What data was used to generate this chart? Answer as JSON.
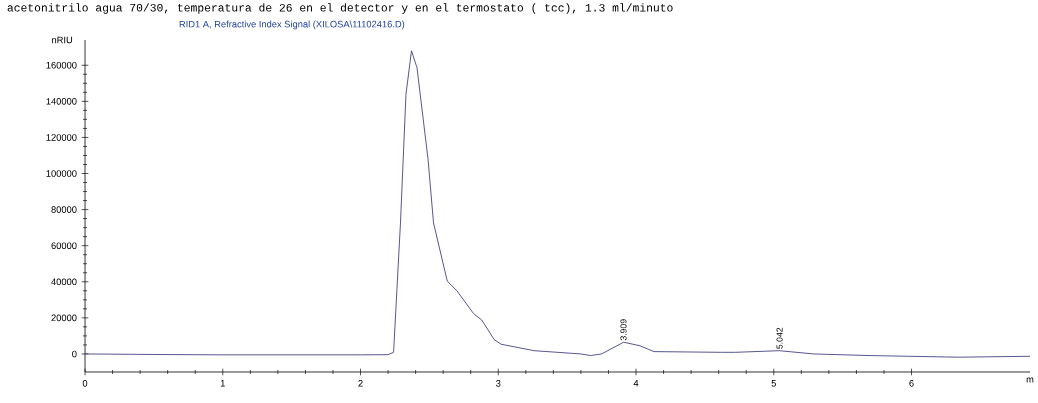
{
  "chart_data": {
    "type": "line",
    "title": "acetonitrilo agua 70/30, temperatura de 26 en el detector y en el termostato ( tcc), 1.3 ml/minuto",
    "subtitle": "RID1 A, Refractive Index Signal (XILOSA\\11102416.D)",
    "xlabel": "m",
    "ylabel": "nRIU",
    "x": [
      0,
      0.5,
      1,
      1.5,
      2,
      2.2,
      2.24,
      2.29,
      2.33,
      2.37,
      2.41,
      2.49,
      2.53,
      2.63,
      2.7,
      2.82,
      2.88,
      2.97,
      3.02,
      3.26,
      3.6,
      3.67,
      3.75,
      3.91,
      4.03,
      4.13,
      4.62,
      4.72,
      5.04,
      5.29,
      5.7,
      6.34,
      6.86
    ],
    "values": [
      0,
      -300,
      -500,
      -500,
      -500,
      -400,
      900,
      72600,
      144000,
      168000,
      158600,
      108000,
      72600,
      40300,
      35000,
      22400,
      18800,
      8000,
      5400,
      1800,
      0,
      -900,
      0,
      6500,
      4500,
      1300,
      900,
      900,
      1800,
      0,
      -900,
      -1800,
      -1300
    ],
    "color": "#4a4a8a",
    "xlim": [
      0,
      6.86
    ],
    "ylim": [
      -10000,
      174000
    ],
    "xticks": [
      0,
      1,
      2,
      3,
      4,
      5,
      6
    ],
    "yticks": [
      0,
      20000,
      40000,
      60000,
      80000,
      100000,
      120000,
      140000,
      160000
    ],
    "annotations": [
      {
        "text": "3.909",
        "x": 3.909,
        "y": 6500
      },
      {
        "text": "5.042",
        "x": 5.042,
        "y": 1800
      }
    ]
  }
}
